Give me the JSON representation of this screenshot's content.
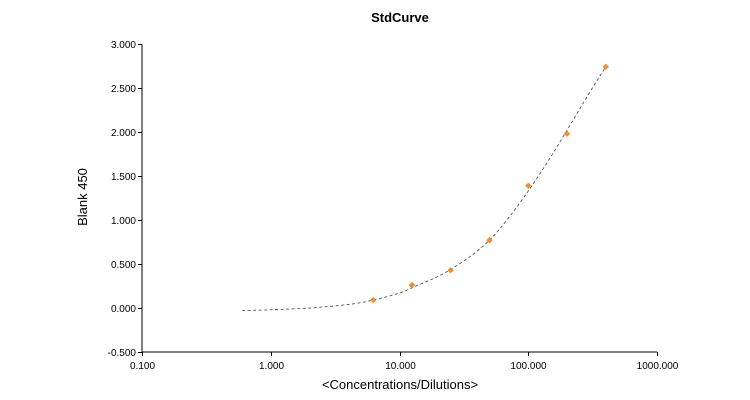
{
  "chart_data": {
    "type": "scatter",
    "title": "StdCurve",
    "xlabel": "<Concentrations/Dilutions>",
    "ylabel": "Blank 450",
    "x_scale": "log",
    "xlim": [
      0.1,
      1000
    ],
    "ylim": [
      -0.5,
      3.0
    ],
    "x_ticks": [
      0.1,
      1,
      10,
      100,
      1000
    ],
    "x_tick_labels": [
      "0.100",
      "1.000",
      "10.000",
      "100.000",
      "1000.000"
    ],
    "y_ticks": [
      -0.5,
      0,
      0.5,
      1.0,
      1.5,
      2.0,
      2.5,
      3.0
    ],
    "y_tick_labels": [
      "-0.500",
      "0.000",
      "0.500",
      "1.000",
      "1.500",
      "2.000",
      "2.500",
      "3.000"
    ],
    "grid": false,
    "legend": "none",
    "series": [
      {
        "marker": "diamond",
        "color": "#f28e2b",
        "points": [
          {
            "x": 6.25,
            "y": 0.09
          },
          {
            "x": 12.5,
            "y": 0.26
          },
          {
            "x": 25,
            "y": 0.43
          },
          {
            "x": 50,
            "y": 0.77
          },
          {
            "x": 100,
            "y": 1.39
          },
          {
            "x": 200,
            "y": 1.98
          },
          {
            "x": 400,
            "y": 2.74
          }
        ]
      }
    ],
    "fit_curve": {
      "style": "dashed",
      "color": "#555555",
      "x_range": [
        0.6,
        400
      ],
      "points": [
        {
          "x": 0.6,
          "y": -0.03
        },
        {
          "x": 1,
          "y": -0.02
        },
        {
          "x": 2,
          "y": 0.0
        },
        {
          "x": 4,
          "y": 0.04
        },
        {
          "x": 6.25,
          "y": 0.09
        },
        {
          "x": 10,
          "y": 0.17
        },
        {
          "x": 12.5,
          "y": 0.23
        },
        {
          "x": 20,
          "y": 0.36
        },
        {
          "x": 25,
          "y": 0.44
        },
        {
          "x": 35,
          "y": 0.58
        },
        {
          "x": 50,
          "y": 0.77
        },
        {
          "x": 70,
          "y": 1.02
        },
        {
          "x": 100,
          "y": 1.33
        },
        {
          "x": 150,
          "y": 1.72
        },
        {
          "x": 200,
          "y": 2.02
        },
        {
          "x": 300,
          "y": 2.45
        },
        {
          "x": 400,
          "y": 2.74
        }
      ]
    }
  }
}
